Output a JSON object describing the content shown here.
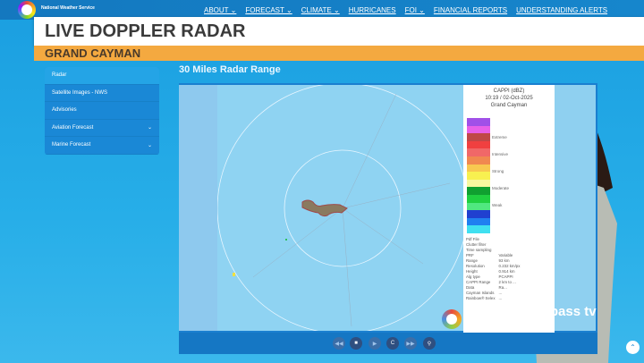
{
  "header": {
    "brand": "National Weather Service",
    "nav": [
      "ABOUT ⌄",
      "FORECAST ⌄",
      "CLIMATE ⌄",
      "HURRICANES",
      "FOI ⌄",
      "FINANCIAL REPORTS",
      "UNDERSTANDING ALERTS"
    ]
  },
  "title": "LIVE DOPPLER RADAR",
  "subtitle": "GRAND CAYMAN",
  "sidebar": {
    "items": [
      {
        "label": "Radar",
        "chevron": false
      },
      {
        "label": "Satellite Images - NWS",
        "chevron": false
      },
      {
        "label": "Advisories",
        "chevron": false
      },
      {
        "label": "Aviation Forecast",
        "chevron": true
      },
      {
        "label": "Marine Forecast",
        "chevron": true
      }
    ]
  },
  "radar": {
    "range_title": "30 Miles Radar Range",
    "legend": {
      "product": "CAPPI (dBZ)",
      "timestamp": "10:19 / 02-Oct-2025",
      "location": "Grand Cayman",
      "colors": [
        "#a050e8",
        "#e860e8",
        "#c04848",
        "#f04040",
        "#f06868",
        "#f08850",
        "#f8c850",
        "#f8f050",
        "#f8f8a0",
        "#10a030",
        "#20d040",
        "#50e880",
        "#2040d0",
        "#2080f0",
        "#40e0f0"
      ],
      "labels": [
        "Extreme",
        "Intensive",
        "Strong",
        "Moderate",
        "Weak"
      ]
    },
    "meta": [
      [
        "Pdf File",
        ""
      ],
      [
        "Clutter filter",
        ""
      ],
      [
        "Time sampling",
        ""
      ],
      [
        "PRF",
        "Variable"
      ],
      [
        "Range",
        "93 km"
      ],
      [
        "Resolution",
        "0.232 km/px"
      ],
      [
        "Height",
        "0.914 km"
      ],
      [
        "Alg type",
        "PCAPPI"
      ],
      [
        "CAPPI Range",
        "2 km to ..."
      ],
      [
        "Data",
        "Ra..."
      ],
      [
        "Cayman Islands",
        "..."
      ],
      [
        "Rainbow® Selex",
        "..."
      ]
    ]
  },
  "controls": [
    "rewind-icon",
    "stop-icon",
    "play-icon",
    "refresh-icon",
    "fast-forward-icon",
    "zoom-icon"
  ],
  "overlay": {
    "channel": "compass tv"
  }
}
